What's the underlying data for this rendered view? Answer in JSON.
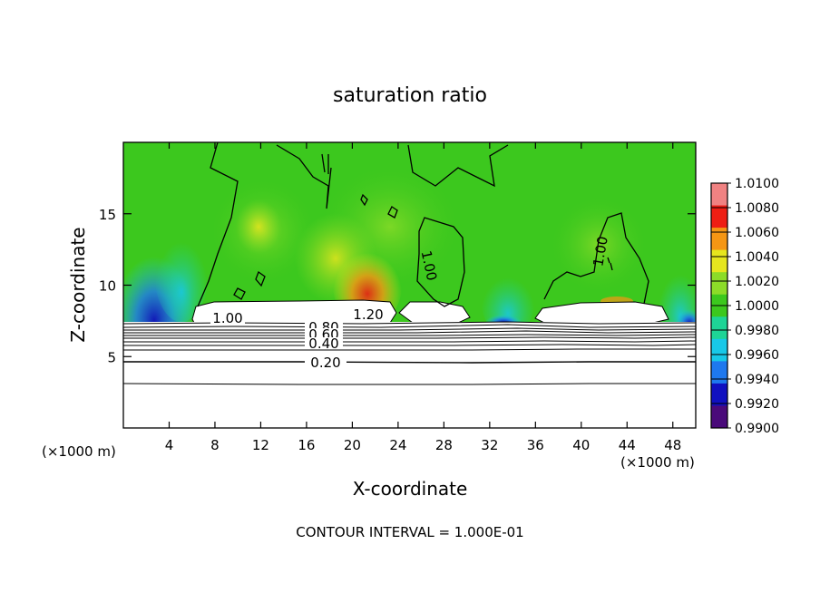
{
  "chart_data": {
    "type": "heatmap",
    "title": "saturation ratio",
    "xlabel": "X-coordinate",
    "ylabel": "Z-coordinate",
    "x_unit_left": "(×1000 m)",
    "x_unit_right": "(×1000 m)",
    "xlim": [
      0,
      50
    ],
    "ylim": [
      0,
      20
    ],
    "x_ticks": [
      4,
      8,
      12,
      16,
      20,
      24,
      28,
      32,
      36,
      40,
      44,
      48
    ],
    "y_ticks": [
      5,
      10,
      15
    ],
    "footnote": "CONTOUR INTERVAL = 1.000E-01",
    "colorbar": {
      "values": [
        0.99,
        0.992,
        0.994,
        0.996,
        0.998,
        1.0,
        1.002,
        1.004,
        1.006,
        1.008,
        1.01
      ],
      "labels": [
        "0.9900",
        "0.9920",
        "0.9940",
        "0.9960",
        "0.9980",
        "1.0000",
        "1.0020",
        "1.0040",
        "1.0060",
        "1.0080",
        "1.0100"
      ],
      "colors": [
        "#4a0a7a",
        "#1010c0",
        "#1e78ee",
        "#18c8e8",
        "#1ed496",
        "#3cc81e",
        "#8cdc28",
        "#e6e61e",
        "#f59614",
        "#ee1e14",
        "#f08282"
      ]
    },
    "contour_labels": [
      {
        "text": "1.00",
        "x": 9.5,
        "z": 7.6
      },
      {
        "text": "1.20",
        "x": 21.5,
        "z": 7.9
      },
      {
        "text": "0.80",
        "x": 17.5,
        "z": 7.0
      },
      {
        "text": "0.60",
        "x": 17.5,
        "z": 6.6
      },
      {
        "text": "0.40",
        "x": 17.5,
        "z": 5.9
      },
      {
        "text": "0.20",
        "x": 17.5,
        "z": 4.6
      },
      {
        "text": "1.00",
        "x": 26.5,
        "z": 11.3
      },
      {
        "text": "1.00",
        "x": 42.0,
        "z": 12.5
      }
    ],
    "grid": false
  }
}
